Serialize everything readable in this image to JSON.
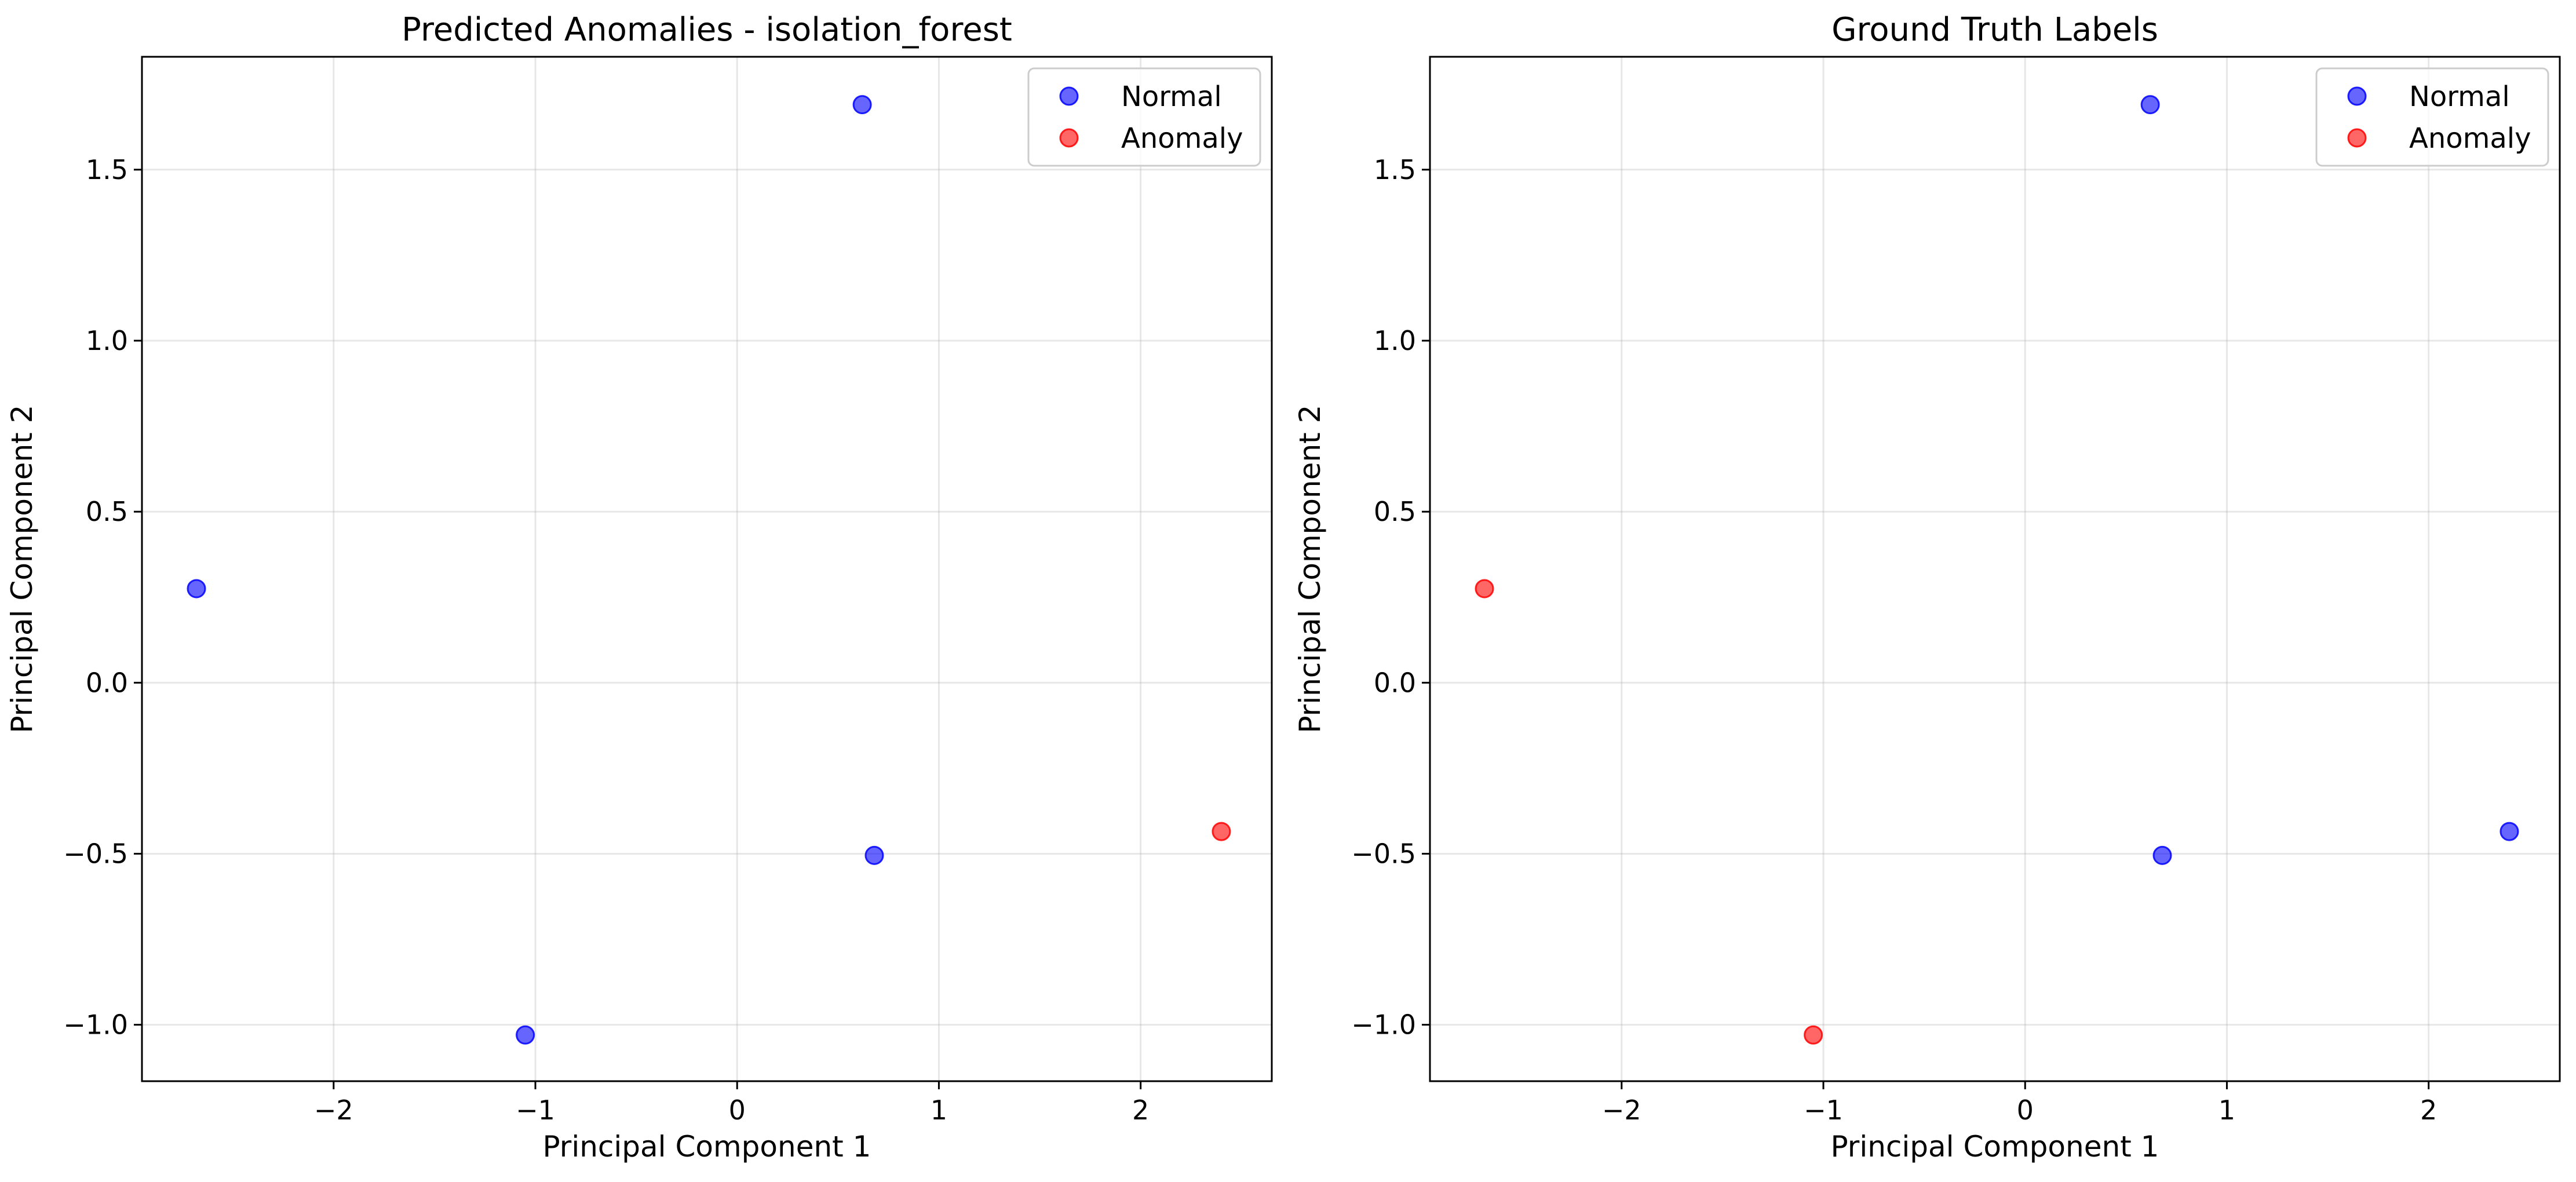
{
  "chart_data": [
    {
      "type": "scatter",
      "title": "Predicted Anomalies - isolation_forest",
      "xlabel": "Principal Component 1",
      "ylabel": "Principal Component 2",
      "xlim": [
        -2.95,
        2.65
      ],
      "ylim": [
        -1.165,
        1.83
      ],
      "xticks": [
        -2,
        -1,
        0,
        1,
        2
      ],
      "xtick_labels": [
        "−2",
        "−1",
        "0",
        "1",
        "2"
      ],
      "yticks": [
        -1.0,
        -0.5,
        0.0,
        0.5,
        1.0,
        1.5
      ],
      "ytick_labels": [
        "−1.0",
        "−0.5",
        "0.0",
        "0.5",
        "1.0",
        "1.5"
      ],
      "grid": true,
      "legend_position": "top-right",
      "series": [
        {
          "name": "Normal",
          "color": "#0000ff",
          "points": [
            [
              0.62,
              1.69
            ],
            [
              -2.68,
              0.275
            ],
            [
              0.68,
              -0.505
            ],
            [
              -1.05,
              -1.03
            ]
          ]
        },
        {
          "name": "Anomaly",
          "color": "#ff0000",
          "points": [
            [
              2.4,
              -0.435
            ]
          ]
        }
      ]
    },
    {
      "type": "scatter",
      "title": "Ground Truth Labels",
      "xlabel": "Principal Component 1",
      "ylabel": "Principal Component 2",
      "xlim": [
        -2.95,
        2.65
      ],
      "ylim": [
        -1.165,
        1.83
      ],
      "xticks": [
        -2,
        -1,
        0,
        1,
        2
      ],
      "xtick_labels": [
        "−2",
        "−1",
        "0",
        "1",
        "2"
      ],
      "yticks": [
        -1.0,
        -0.5,
        0.0,
        0.5,
        1.0,
        1.5
      ],
      "ytick_labels": [
        "−1.0",
        "−0.5",
        "0.0",
        "0.5",
        "1.0",
        "1.5"
      ],
      "grid": true,
      "legend_position": "top-right",
      "series": [
        {
          "name": "Normal",
          "color": "#0000ff",
          "points": [
            [
              0.62,
              1.69
            ],
            [
              0.68,
              -0.505
            ],
            [
              2.4,
              -0.435
            ]
          ]
        },
        {
          "name": "Anomaly",
          "color": "#ff0000",
          "points": [
            [
              -2.68,
              0.275
            ],
            [
              -1.05,
              -1.03
            ]
          ]
        }
      ]
    }
  ]
}
